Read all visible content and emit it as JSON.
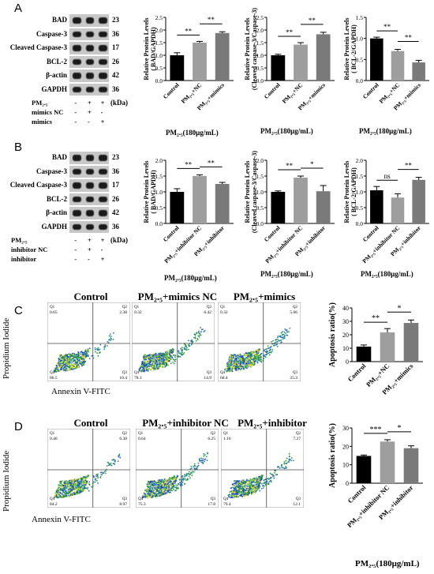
{
  "panels": {
    "A": "A",
    "B": "B",
    "C": "C",
    "D": "D"
  },
  "westernA": {
    "bands": [
      {
        "name": "BAD",
        "kda": "23"
      },
      {
        "name": "Caspase-3",
        "kda": "36"
      },
      {
        "name": "Cleaved Caspase-3",
        "kda": "17"
      },
      {
        "name": "BCL-2",
        "kda": "26"
      },
      {
        "name": "β-actin",
        "kda": "42"
      },
      {
        "name": "GAPDH",
        "kda": "36"
      }
    ],
    "kda_label": "(kDa)",
    "treatments": [
      {
        "name": "PM₂.₅",
        "signs": [
          "-",
          "+",
          "+"
        ]
      },
      {
        "name": "mimics NC",
        "signs": [
          "-",
          "+",
          "-"
        ]
      },
      {
        "name": "mimics",
        "signs": [
          "-",
          "-",
          "+"
        ]
      }
    ]
  },
  "westernB": {
    "bands": [
      {
        "name": "BAD",
        "kda": "23"
      },
      {
        "name": "Caspase-3",
        "kda": "36"
      },
      {
        "name": "Cleaved Caspase-3",
        "kda": "17"
      },
      {
        "name": "BCL-2",
        "kda": "26"
      },
      {
        "name": "β-actin",
        "kda": "42"
      },
      {
        "name": "GAPDH",
        "kda": "36"
      }
    ],
    "kda_label": "(kDa)",
    "treatments": [
      {
        "name": "PM₂.₅",
        "signs": [
          "-",
          "+",
          "+"
        ]
      },
      {
        "name": "inhibitor NC",
        "signs": [
          "-",
          "+",
          "-"
        ]
      },
      {
        "name": "inhibitor",
        "signs": [
          "-",
          "-",
          "+"
        ]
      }
    ]
  },
  "flowC": {
    "titles": [
      "Control",
      "PM₂.₅+mimics NC",
      "PM₂.₅+mimics"
    ],
    "ylabel": "Propidium Iodide",
    "xlabel": "Annexin V-FITC",
    "quadrants": [
      {
        "q1": "0.65",
        "q2": "2.38",
        "q3": "10.4",
        "q4": "86.5"
      },
      {
        "q1": "0.32",
        "q2": "6.42",
        "q3": "14.9",
        "q4": "78.1"
      },
      {
        "q1": "0.32",
        "q2": "5.66",
        "q3": "25.3",
        "q4": "68.4"
      }
    ]
  },
  "flowD": {
    "titles": [
      "Control",
      "PM₂.₅+inhibitor NC",
      "PM₂.₅+inhibitor"
    ],
    "ylabel": "Propidium Iodide",
    "xlabel": "Annexin V-FITC",
    "quadrants": [
      {
        "q1": "0.46",
        "q2": "6.38",
        "q3": "8.97",
        "q4": "84.2"
      },
      {
        "q1": "0.64",
        "q2": "6.25",
        "q3": "17.8",
        "q4": "75.3"
      },
      {
        "q1": "1.16",
        "q2": "7.27",
        "q3": "12.1",
        "q4": "79.4"
      }
    ]
  },
  "xtitle": "PM₂.₅(180μg/mL)",
  "chart_data": [
    {
      "id": "A1",
      "type": "bar",
      "categories": [
        "Control",
        "PM₂.₅+NC",
        "PM₂.₅+mimics"
      ],
      "values": [
        1.0,
        1.5,
        1.88
      ],
      "errors": [
        0.1,
        0.05,
        0.05
      ],
      "colors": [
        "#000000",
        "#9e9e9e",
        "#7a7a7a"
      ],
      "ylabel": "Relative Protein Levels\n( BAD/GAPDH)",
      "ylim": [
        0,
        2.5
      ],
      "yticks": [
        "0.0",
        "0.5",
        "1.0",
        "1.5",
        "2.0",
        "2.5"
      ],
      "sig": [
        {
          "from": 0,
          "to": 1,
          "label": "**"
        },
        {
          "from": 1,
          "to": 2,
          "label": "**"
        }
      ],
      "xtitle": "PM₂.₅(180μg/mL)"
    },
    {
      "id": "A2",
      "type": "bar",
      "categories": [
        "Control",
        "PM₂.₅+NC",
        "PM₂.₅+mimics"
      ],
      "values": [
        1.0,
        1.42,
        1.83
      ],
      "errors": [
        0.04,
        0.08,
        0.08
      ],
      "colors": [
        "#000000",
        "#9e9e9e",
        "#7a7a7a"
      ],
      "ylabel": "Relative Protein Levels\n(Cleaved caspase-3/Caspase-3)",
      "ylim": [
        0,
        2.5
      ],
      "yticks": [
        "0.0",
        "0.5",
        "1.0",
        "1.5",
        "2.0",
        "2.5"
      ],
      "sig": [
        {
          "from": 0,
          "to": 1,
          "label": "**"
        },
        {
          "from": 1,
          "to": 2,
          "label": "**"
        }
      ],
      "xtitle": "PM₂.₅(180μg/mL)"
    },
    {
      "id": "A3",
      "type": "bar",
      "categories": [
        "Control",
        "PM₂.₅+NC",
        "PM₂.₅+mimics"
      ],
      "values": [
        1.0,
        0.7,
        0.43
      ],
      "errors": [
        0.03,
        0.04,
        0.05
      ],
      "colors": [
        "#000000",
        "#9e9e9e",
        "#7a7a7a"
      ],
      "ylabel": "Relative Protein Levels\n( BCL-2/GAPDH)",
      "ylim": [
        0,
        1.5
      ],
      "yticks": [
        "0.0",
        "0.5",
        "1.0",
        "1.5"
      ],
      "sig": [
        {
          "from": 0,
          "to": 1,
          "label": "**"
        },
        {
          "from": 1,
          "to": 2,
          "label": "**"
        }
      ],
      "xtitle": "PM₂.₅(180μg/mL)"
    },
    {
      "id": "B1",
      "type": "bar",
      "categories": [
        "Control",
        "PM₂.₅+inhibitor NC",
        "PM₂.₅+inhibitor"
      ],
      "values": [
        1.0,
        1.5,
        1.25
      ],
      "errors": [
        0.1,
        0.04,
        0.05
      ],
      "colors": [
        "#000000",
        "#9e9e9e",
        "#7a7a7a"
      ],
      "ylabel": "Relative Protein Levels\n( BAD/GAPDH)",
      "ylim": [
        0,
        2.0
      ],
      "yticks": [
        "0.0",
        "0.5",
        "1.0",
        "1.5",
        "2.0"
      ],
      "sig": [
        {
          "from": 0,
          "to": 1,
          "label": "**"
        },
        {
          "from": 1,
          "to": 2,
          "label": "**"
        }
      ],
      "xtitle": "PM₂.₅(180μg/mL)"
    },
    {
      "id": "B2",
      "type": "bar",
      "categories": [
        "Control",
        "PM₂.₅+inhibitor NC",
        "PM₂.₅+inhibitor"
      ],
      "values": [
        1.0,
        1.45,
        1.02
      ],
      "errors": [
        0.03,
        0.05,
        0.18
      ],
      "colors": [
        "#000000",
        "#9e9e9e",
        "#7a7a7a"
      ],
      "ylabel": "Relative Protein Levels\n(Cleaved caspase-3/Caspase-3)",
      "ylim": [
        0,
        2.0
      ],
      "yticks": [
        "0.0",
        "0.5",
        "1.0",
        "1.5",
        "2.0"
      ],
      "sig": [
        {
          "from": 0,
          "to": 1,
          "label": "**"
        },
        {
          "from": 1,
          "to": 2,
          "label": "*"
        }
      ],
      "xtitle": "PM₂.₅(180μg/mL)"
    },
    {
      "id": "B3",
      "type": "bar",
      "categories": [
        "Control",
        "PM₂.₅+inhibitor NC",
        "PM₂.₅+inhibitor"
      ],
      "values": [
        1.05,
        0.82,
        1.38
      ],
      "errors": [
        0.12,
        0.12,
        0.08
      ],
      "colors": [
        "#000000",
        "#9e9e9e",
        "#7a7a7a"
      ],
      "ylabel": "Relative Protein Levels\n( BCL-2/GAPDH)",
      "ylim": [
        0,
        2.0
      ],
      "yticks": [
        "0.0",
        "0.5",
        "1.0",
        "1.5",
        "2.0"
      ],
      "sig": [
        {
          "from": 0,
          "to": 1,
          "label": "ns"
        },
        {
          "from": 1,
          "to": 2,
          "label": "**"
        }
      ],
      "xtitle": "PM₂.₅(180μg/mL)"
    },
    {
      "id": "C",
      "type": "bar",
      "categories": [
        "Control",
        "PM₂.₅+NC",
        "PM₂.₅+mimics"
      ],
      "values": [
        11.2,
        21.8,
        28.8
      ],
      "errors": [
        1.2,
        2.8,
        2.2
      ],
      "colors": [
        "#000000",
        "#9e9e9e",
        "#7a7a7a"
      ],
      "ylabel": "Apoptosis ratio(%)",
      "ylim": [
        0,
        40
      ],
      "yticks": [
        "0",
        "10",
        "20",
        "30",
        "40"
      ],
      "sig": [
        {
          "from": 0,
          "to": 1,
          "label": "**"
        },
        {
          "from": 1,
          "to": 2,
          "label": "*"
        }
      ],
      "xtitle": ""
    },
    {
      "id": "D",
      "type": "bar",
      "categories": [
        "Control",
        "PM₂.₅+inhibitor NC",
        "PM₂.₅+inhibitor"
      ],
      "values": [
        14.8,
        22.6,
        19.0
      ],
      "errors": [
        0.5,
        1.0,
        1.3
      ],
      "colors": [
        "#000000",
        "#9e9e9e",
        "#7a7a7a"
      ],
      "ylabel": "Apoptosis ratio(%)",
      "ylim": [
        0,
        30
      ],
      "yticks": [
        "0",
        "10",
        "20",
        "30"
      ],
      "sig": [
        {
          "from": 0,
          "to": 1,
          "label": "***"
        },
        {
          "from": 1,
          "to": 2,
          "label": "*"
        }
      ],
      "xtitle": "PM₂.₅(180μg/mL)"
    }
  ]
}
